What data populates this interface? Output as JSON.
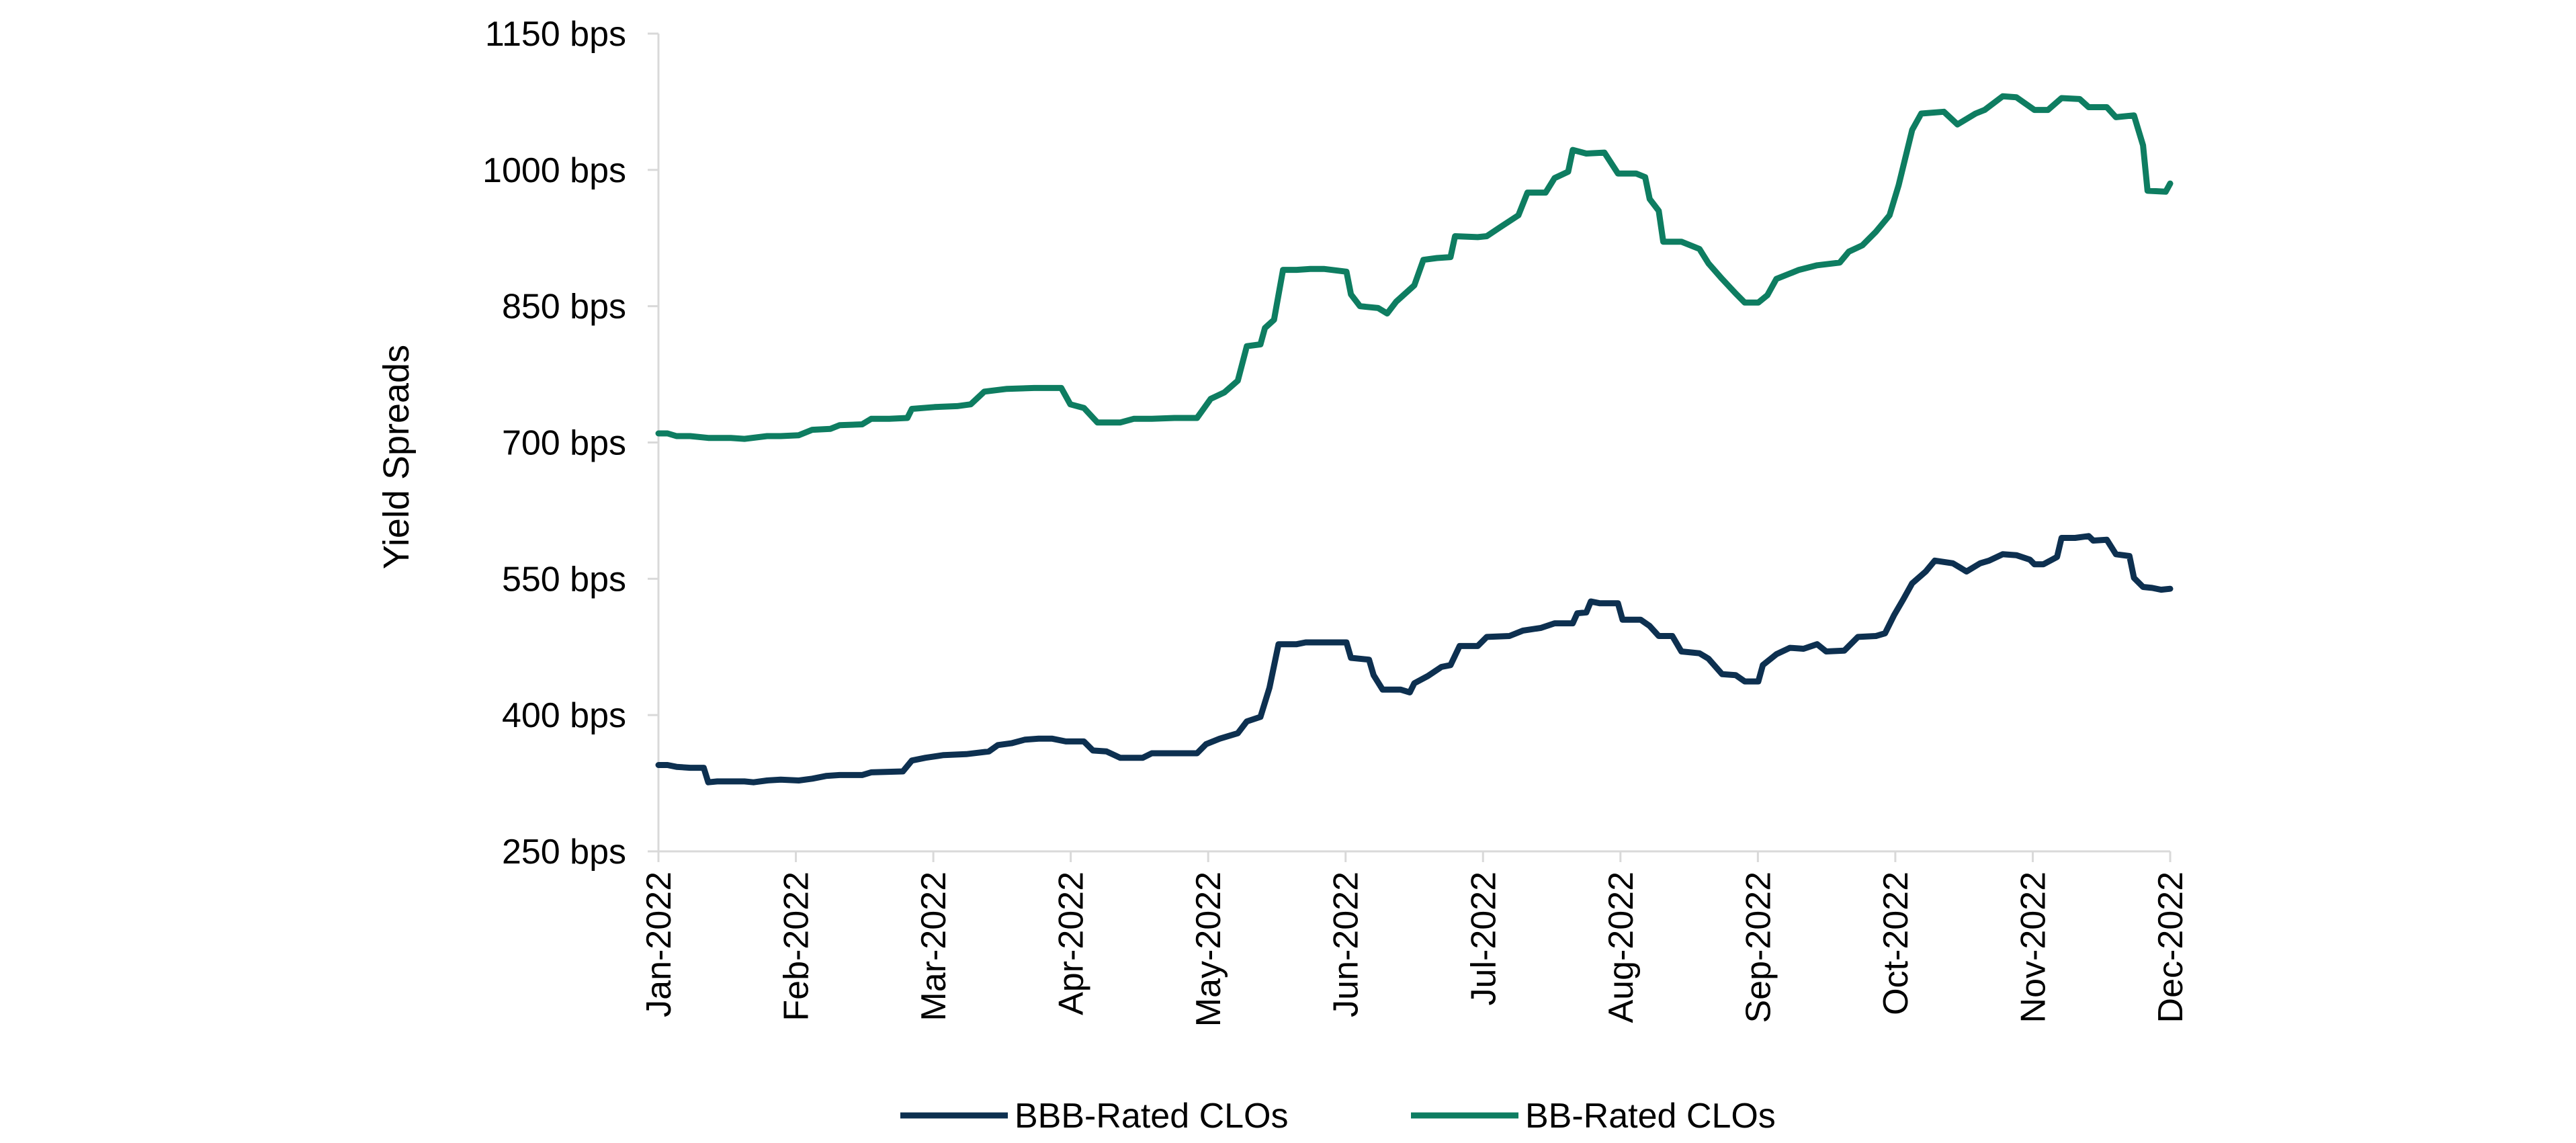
{
  "colors": {
    "bbb": "#0d3050",
    "bb": "#0e7d61",
    "axis": "#d9d9d9"
  },
  "chart_data": {
    "type": "line",
    "title": "",
    "xlabel": "",
    "ylabel": "Yield Spreads",
    "ylim": [
      250,
      1150
    ],
    "y_ticks": [
      "250 bps",
      "400 bps",
      "550 bps",
      "700 bps",
      "850 bps",
      "1000 bps",
      "1150 bps"
    ],
    "x_tick_labels": [
      "Jan-2022",
      "Feb-2022",
      "Mar-2022",
      "Apr-2022",
      "May-2022",
      "Jun-2022",
      "Jul-2022",
      "Aug-2022",
      "Sep-2022",
      "Oct-2022",
      "Nov-2022",
      "Dec-2022"
    ],
    "x_range": [
      "2022-01-01",
      "2022-12-01"
    ],
    "grid": false,
    "legend_position": "bottom",
    "series": [
      {
        "name": "BBB-Rated CLOs",
        "color_key": "bbb",
        "points": [
          [
            "2022-01-01",
            345
          ],
          [
            "2022-01-03",
            345
          ],
          [
            "2022-01-05",
            343
          ],
          [
            "2022-01-08",
            342
          ],
          [
            "2022-01-11",
            342
          ],
          [
            "2022-01-12",
            326
          ],
          [
            "2022-01-14",
            327
          ],
          [
            "2022-01-20",
            327
          ],
          [
            "2022-01-22",
            326
          ],
          [
            "2022-01-25",
            328
          ],
          [
            "2022-01-28",
            329
          ],
          [
            "2022-02-01",
            328
          ],
          [
            "2022-02-04",
            330
          ],
          [
            "2022-02-07",
            333
          ],
          [
            "2022-02-10",
            334
          ],
          [
            "2022-02-15",
            334
          ],
          [
            "2022-02-17",
            337
          ],
          [
            "2022-02-24",
            338
          ],
          [
            "2022-02-26",
            350
          ],
          [
            "2022-03-01",
            353
          ],
          [
            "2022-03-05",
            356
          ],
          [
            "2022-03-10",
            357
          ],
          [
            "2022-03-15",
            360
          ],
          [
            "2022-03-17",
            367
          ],
          [
            "2022-03-20",
            369
          ],
          [
            "2022-03-23",
            373
          ],
          [
            "2022-03-26",
            374
          ],
          [
            "2022-03-29",
            374
          ],
          [
            "2022-04-01",
            371
          ],
          [
            "2022-04-05",
            371
          ],
          [
            "2022-04-07",
            361
          ],
          [
            "2022-04-10",
            360
          ],
          [
            "2022-04-13",
            353
          ],
          [
            "2022-04-18",
            353
          ],
          [
            "2022-04-20",
            358
          ],
          [
            "2022-04-30",
            358
          ],
          [
            "2022-05-02",
            368
          ],
          [
            "2022-05-05",
            374
          ],
          [
            "2022-05-09",
            380
          ],
          [
            "2022-05-11",
            393
          ],
          [
            "2022-05-14",
            398
          ],
          [
            "2022-05-16",
            430
          ],
          [
            "2022-05-18",
            478
          ],
          [
            "2022-05-22",
            478
          ],
          [
            "2022-05-24",
            480
          ],
          [
            "2022-05-28",
            480
          ],
          [
            "2022-06-02",
            480
          ],
          [
            "2022-06-03",
            463
          ],
          [
            "2022-06-07",
            461
          ],
          [
            "2022-06-08",
            444
          ],
          [
            "2022-06-10",
            428
          ],
          [
            "2022-06-14",
            428
          ],
          [
            "2022-06-16",
            425
          ],
          [
            "2022-06-17",
            435
          ],
          [
            "2022-06-20",
            443
          ],
          [
            "2022-06-23",
            453
          ],
          [
            "2022-06-25",
            455
          ],
          [
            "2022-06-27",
            476
          ],
          [
            "2022-07-01",
            476
          ],
          [
            "2022-07-03",
            486
          ],
          [
            "2022-07-08",
            487
          ],
          [
            "2022-07-11",
            493
          ],
          [
            "2022-07-15",
            496
          ],
          [
            "2022-07-18",
            501
          ],
          [
            "2022-07-22",
            501
          ],
          [
            "2022-07-23",
            512
          ],
          [
            "2022-07-25",
            513
          ],
          [
            "2022-07-26",
            525
          ],
          [
            "2022-07-28",
            523
          ],
          [
            "2022-08-01",
            523
          ],
          [
            "2022-08-02",
            505
          ],
          [
            "2022-08-06",
            505
          ],
          [
            "2022-08-08",
            498
          ],
          [
            "2022-08-10",
            487
          ],
          [
            "2022-08-13",
            487
          ],
          [
            "2022-08-15",
            470
          ],
          [
            "2022-08-19",
            468
          ],
          [
            "2022-08-21",
            462
          ],
          [
            "2022-08-24",
            445
          ],
          [
            "2022-08-27",
            444
          ],
          [
            "2022-08-29",
            437
          ],
          [
            "2022-09-01",
            437
          ],
          [
            "2022-09-02",
            455
          ],
          [
            "2022-09-05",
            467
          ],
          [
            "2022-09-08",
            474
          ],
          [
            "2022-09-11",
            473
          ],
          [
            "2022-09-14",
            478
          ],
          [
            "2022-09-16",
            470
          ],
          [
            "2022-09-20",
            471
          ],
          [
            "2022-09-23",
            486
          ],
          [
            "2022-09-27",
            487
          ],
          [
            "2022-09-29",
            490
          ],
          [
            "2022-10-01",
            510
          ],
          [
            "2022-10-03",
            527
          ],
          [
            "2022-10-05",
            545
          ],
          [
            "2022-10-08",
            558
          ],
          [
            "2022-10-10",
            570
          ],
          [
            "2022-10-14",
            567
          ],
          [
            "2022-10-17",
            558
          ],
          [
            "2022-10-20",
            567
          ],
          [
            "2022-10-22",
            570
          ],
          [
            "2022-10-25",
            577
          ],
          [
            "2022-10-28",
            576
          ],
          [
            "2022-10-31",
            571
          ],
          [
            "2022-11-01",
            566
          ],
          [
            "2022-11-03",
            566
          ],
          [
            "2022-11-06",
            574
          ],
          [
            "2022-11-07",
            595
          ],
          [
            "2022-11-10",
            595
          ],
          [
            "2022-11-13",
            597
          ],
          [
            "2022-11-14",
            592
          ],
          [
            "2022-11-17",
            593
          ],
          [
            "2022-11-19",
            577
          ],
          [
            "2022-11-22",
            575
          ],
          [
            "2022-11-23",
            551
          ],
          [
            "2022-11-25",
            541
          ],
          [
            "2022-11-27",
            540
          ],
          [
            "2022-11-29",
            538
          ],
          [
            "2022-12-01",
            539
          ]
        ]
      },
      {
        "name": "BB-Rated CLOs",
        "color_key": "bb",
        "points": [
          [
            "2022-01-01",
            710
          ],
          [
            "2022-01-03",
            710
          ],
          [
            "2022-01-05",
            707
          ],
          [
            "2022-01-08",
            707
          ],
          [
            "2022-01-12",
            705
          ],
          [
            "2022-01-17",
            705
          ],
          [
            "2022-01-20",
            704
          ],
          [
            "2022-01-25",
            707
          ],
          [
            "2022-01-28",
            707
          ],
          [
            "2022-02-01",
            708
          ],
          [
            "2022-02-04",
            714
          ],
          [
            "2022-02-08",
            715
          ],
          [
            "2022-02-10",
            719
          ],
          [
            "2022-02-15",
            720
          ],
          [
            "2022-02-17",
            726
          ],
          [
            "2022-02-21",
            726
          ],
          [
            "2022-02-25",
            727
          ],
          [
            "2022-02-26",
            737
          ],
          [
            "2022-03-03",
            739
          ],
          [
            "2022-03-08",
            740
          ],
          [
            "2022-03-11",
            742
          ],
          [
            "2022-03-14",
            756
          ],
          [
            "2022-03-19",
            759
          ],
          [
            "2022-03-25",
            760
          ],
          [
            "2022-03-31",
            760
          ],
          [
            "2022-04-02",
            742
          ],
          [
            "2022-04-05",
            738
          ],
          [
            "2022-04-08",
            722
          ],
          [
            "2022-04-13",
            722
          ],
          [
            "2022-04-16",
            726
          ],
          [
            "2022-04-20",
            726
          ],
          [
            "2022-04-25",
            727
          ],
          [
            "2022-04-30",
            727
          ],
          [
            "2022-05-03",
            748
          ],
          [
            "2022-05-06",
            755
          ],
          [
            "2022-05-09",
            768
          ],
          [
            "2022-05-11",
            806
          ],
          [
            "2022-05-14",
            808
          ],
          [
            "2022-05-15",
            826
          ],
          [
            "2022-05-17",
            835
          ],
          [
            "2022-05-19",
            890
          ],
          [
            "2022-05-22",
            890
          ],
          [
            "2022-05-25",
            891
          ],
          [
            "2022-05-28",
            891
          ],
          [
            "2022-06-02",
            888
          ],
          [
            "2022-06-03",
            863
          ],
          [
            "2022-06-05",
            850
          ],
          [
            "2022-06-09",
            848
          ],
          [
            "2022-06-11",
            842
          ],
          [
            "2022-06-13",
            855
          ],
          [
            "2022-06-17",
            873
          ],
          [
            "2022-06-19",
            901
          ],
          [
            "2022-06-22",
            903
          ],
          [
            "2022-06-25",
            904
          ],
          [
            "2022-06-26",
            927
          ],
          [
            "2022-07-01",
            926
          ],
          [
            "2022-07-03",
            927
          ],
          [
            "2022-07-06",
            937
          ],
          [
            "2022-07-10",
            950
          ],
          [
            "2022-07-12",
            975
          ],
          [
            "2022-07-16",
            975
          ],
          [
            "2022-07-18",
            991
          ],
          [
            "2022-07-21",
            998
          ],
          [
            "2022-07-22",
            1022
          ],
          [
            "2022-07-25",
            1018
          ],
          [
            "2022-07-29",
            1019
          ],
          [
            "2022-08-01",
            996
          ],
          [
            "2022-08-05",
            996
          ],
          [
            "2022-08-07",
            992
          ],
          [
            "2022-08-08",
            968
          ],
          [
            "2022-08-10",
            955
          ],
          [
            "2022-08-11",
            921
          ],
          [
            "2022-08-15",
            921
          ],
          [
            "2022-08-19",
            913
          ],
          [
            "2022-08-21",
            897
          ],
          [
            "2022-08-24",
            880
          ],
          [
            "2022-08-27",
            864
          ],
          [
            "2022-08-29",
            854
          ],
          [
            "2022-09-01",
            854
          ],
          [
            "2022-09-03",
            862
          ],
          [
            "2022-09-05",
            880
          ],
          [
            "2022-09-10",
            890
          ],
          [
            "2022-09-14",
            895
          ],
          [
            "2022-09-19",
            898
          ],
          [
            "2022-09-21",
            910
          ],
          [
            "2022-09-24",
            917
          ],
          [
            "2022-09-27",
            932
          ],
          [
            "2022-09-30",
            950
          ],
          [
            "2022-10-02",
            983
          ],
          [
            "2022-10-05",
            1044
          ],
          [
            "2022-10-07",
            1062
          ],
          [
            "2022-10-12",
            1064
          ],
          [
            "2022-10-15",
            1050
          ],
          [
            "2022-10-19",
            1062
          ],
          [
            "2022-10-21",
            1066
          ],
          [
            "2022-10-25",
            1081
          ],
          [
            "2022-10-28",
            1080
          ],
          [
            "2022-11-01",
            1066
          ],
          [
            "2022-11-04",
            1066
          ],
          [
            "2022-11-07",
            1079
          ],
          [
            "2022-11-11",
            1078
          ],
          [
            "2022-11-13",
            1069
          ],
          [
            "2022-11-17",
            1069
          ],
          [
            "2022-11-19",
            1058
          ],
          [
            "2022-11-23",
            1060
          ],
          [
            "2022-11-25",
            1027
          ],
          [
            "2022-11-26",
            977
          ],
          [
            "2022-11-30",
            976
          ],
          [
            "2022-12-01",
            985
          ]
        ]
      }
    ]
  }
}
